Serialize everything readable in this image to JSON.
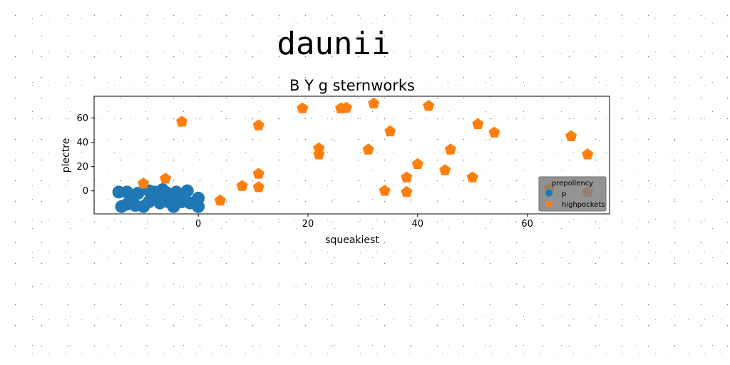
{
  "figure": {
    "suptitle": "daunii"
  },
  "chart_data": {
    "type": "scatter",
    "title": "B Y g sternworks",
    "xlabel": "squeakiest",
    "ylabel": "plectre",
    "xlim": [
      -19,
      75
    ],
    "ylim": [
      -19,
      78
    ],
    "xticks": [
      0,
      20,
      40,
      60
    ],
    "yticks": [
      0,
      20,
      40,
      60
    ],
    "grid": false,
    "legend": {
      "title": "prepollency",
      "placement": "lower-right",
      "background": "#808080"
    },
    "series": [
      {
        "name": "p",
        "color": "#1f77b4",
        "marker": "circle",
        "points": [
          [
            -14.5,
            -1
          ],
          [
            -13,
            -1
          ],
          [
            -11,
            -2
          ],
          [
            -9,
            0
          ],
          [
            -8,
            -1
          ],
          [
            -6.5,
            1
          ],
          [
            -6,
            -1
          ],
          [
            -5,
            -3
          ],
          [
            -4,
            -1
          ],
          [
            -2,
            0
          ],
          [
            0,
            -6
          ],
          [
            -14,
            -13
          ],
          [
            -13,
            -11
          ],
          [
            -11.5,
            -12
          ],
          [
            -10,
            -13
          ],
          [
            -9,
            -9
          ],
          [
            -7.5,
            -5
          ],
          [
            -7,
            -10
          ],
          [
            -5.5,
            -9
          ],
          [
            -4.5,
            -13
          ],
          [
            -4,
            -6
          ],
          [
            -1.5,
            -10
          ],
          [
            0,
            -13
          ],
          [
            -8.5,
            -3
          ],
          [
            -6,
            -6
          ],
          [
            -12,
            -6
          ],
          [
            -3,
            -9
          ]
        ]
      },
      {
        "name": "highpockets",
        "color": "#ff7f0e",
        "marker": "pentagon",
        "points": [
          [
            -10,
            6
          ],
          [
            -6,
            10
          ],
          [
            -3,
            57
          ],
          [
            4,
            -8
          ],
          [
            8,
            4
          ],
          [
            11,
            54
          ],
          [
            11,
            14
          ],
          [
            11,
            3
          ],
          [
            19,
            68
          ],
          [
            22,
            35
          ],
          [
            22,
            30
          ],
          [
            26,
            68
          ],
          [
            27,
            68.5
          ],
          [
            31,
            34
          ],
          [
            32,
            72
          ],
          [
            34,
            0
          ],
          [
            35,
            49
          ],
          [
            38,
            11
          ],
          [
            38,
            -1
          ],
          [
            40,
            22
          ],
          [
            42,
            70
          ],
          [
            45,
            17
          ],
          [
            46,
            34
          ],
          [
            50,
            11
          ],
          [
            51,
            55
          ],
          [
            54,
            48
          ],
          [
            64,
            2
          ],
          [
            68,
            45
          ],
          [
            71,
            30
          ],
          [
            71,
            -1
          ]
        ]
      }
    ]
  }
}
